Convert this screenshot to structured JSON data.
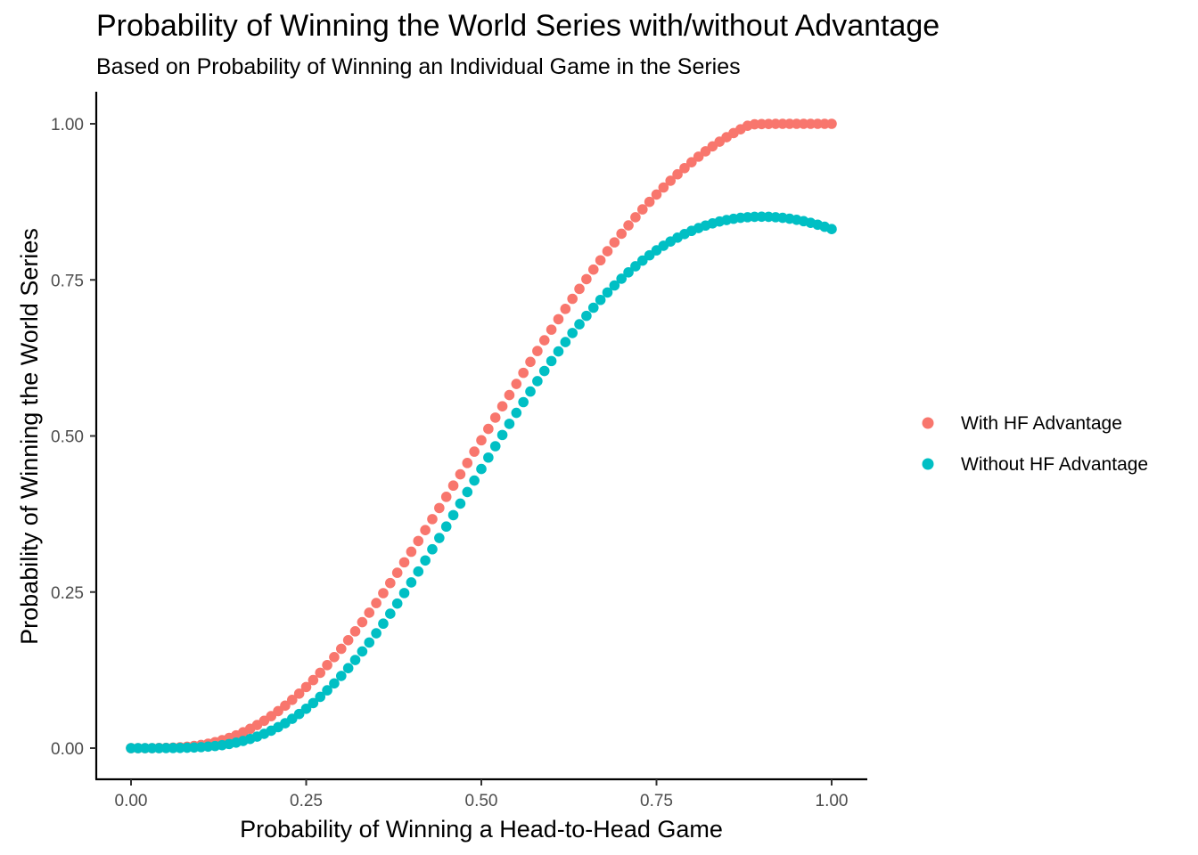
{
  "chart_data": {
    "type": "scatter",
    "title": "Probability of Winning the World Series with/without Advantage",
    "subtitle": "Based on Probability of Winning an Individual Game in the Series",
    "xlabel": "Probability of Winning a Head-to-Head Game",
    "ylabel": "Probability of Winning the World Series",
    "xlim": [
      0,
      1
    ],
    "ylim": [
      0,
      1
    ],
    "x_ticks": [
      "0.00",
      "0.25",
      "0.50",
      "0.75",
      "1.00"
    ],
    "y_ticks": [
      "0.00",
      "0.25",
      "0.50",
      "0.75",
      "1.00"
    ],
    "grid": false,
    "legend_position": "right",
    "x": [
      0.0,
      0.01,
      0.02,
      0.03,
      0.04,
      0.05,
      0.06,
      0.07,
      0.08,
      0.09,
      0.1,
      0.11,
      0.12,
      0.13,
      0.14,
      0.15,
      0.16,
      0.17,
      0.18,
      0.19,
      0.2,
      0.21,
      0.22,
      0.23,
      0.24,
      0.25,
      0.26,
      0.27,
      0.28,
      0.29,
      0.3,
      0.31,
      0.32,
      0.33,
      0.34,
      0.35,
      0.36,
      0.37,
      0.38,
      0.39,
      0.4,
      0.41,
      0.42,
      0.43,
      0.44,
      0.45,
      0.46,
      0.47,
      0.48,
      0.49,
      0.5,
      0.51,
      0.52,
      0.53,
      0.54,
      0.55,
      0.56,
      0.57,
      0.58,
      0.59,
      0.6,
      0.61,
      0.62,
      0.63,
      0.64,
      0.65,
      0.66,
      0.67,
      0.68,
      0.69,
      0.7,
      0.71,
      0.72,
      0.73,
      0.74,
      0.75,
      0.76,
      0.77,
      0.78,
      0.79,
      0.8,
      0.81,
      0.82,
      0.83,
      0.84,
      0.85,
      0.86,
      0.87,
      0.88,
      0.89,
      0.9,
      0.91,
      0.92,
      0.93,
      0.94,
      0.95,
      0.96,
      0.97,
      0.98,
      0.99,
      1.0
    ],
    "series": [
      {
        "name": "With HF Advantage",
        "color": "#F8766D",
        "values": [
          0.0,
          0.0,
          0.0,
          0.0,
          0.0002,
          0.0004,
          0.0008,
          0.0014,
          0.0023,
          0.0035,
          0.0051,
          0.0071,
          0.0096,
          0.0127,
          0.0163,
          0.0205,
          0.0254,
          0.0309,
          0.037,
          0.0438,
          0.0512,
          0.0593,
          0.068,
          0.0773,
          0.0873,
          0.0979,
          0.109,
          0.1207,
          0.133,
          0.1458,
          0.1591,
          0.1729,
          0.1871,
          0.2018,
          0.2169,
          0.2324,
          0.2482,
          0.2644,
          0.2809,
          0.2976,
          0.3146,
          0.3318,
          0.3492,
          0.3668,
          0.3846,
          0.4025,
          0.4205,
          0.4386,
          0.4567,
          0.4749,
          0.4931,
          0.5113,
          0.5294,
          0.5475,
          0.5655,
          0.5834,
          0.6011,
          0.6187,
          0.6361,
          0.6533,
          0.6703,
          0.687,
          0.7035,
          0.7197,
          0.7356,
          0.7512,
          0.7665,
          0.7814,
          0.7959,
          0.8101,
          0.8239,
          0.8373,
          0.8503,
          0.8629,
          0.875,
          0.8867,
          0.898,
          0.9088,
          0.9191,
          0.929,
          0.9384,
          0.9474,
          0.9559,
          0.9639,
          0.9714,
          0.9785,
          0.9851,
          0.9912,
          0.9969,
          0.9992,
          0.9996,
          0.9998,
          0.9999,
          1.0,
          1.0,
          1.0,
          1.0,
          1.0,
          1.0,
          1.0,
          1.0
        ]
      },
      {
        "name": "Without HF Advantage",
        "color": "#00BFC4",
        "values": [
          0.0,
          0.0,
          0.0,
          0.0,
          0.0,
          0.0001,
          0.0002,
          0.0003,
          0.0006,
          0.001,
          0.0016,
          0.0024,
          0.0034,
          0.0048,
          0.0066,
          0.0088,
          0.0115,
          0.0147,
          0.0185,
          0.0229,
          0.0279,
          0.0336,
          0.0399,
          0.047,
          0.0547,
          0.0631,
          0.0722,
          0.0821,
          0.0926,
          0.1037,
          0.1156,
          0.1281,
          0.1412,
          0.1549,
          0.1692,
          0.184,
          0.1994,
          0.2153,
          0.2316,
          0.2484,
          0.2654,
          0.2829,
          0.3006,
          0.3185,
          0.3366,
          0.3549,
          0.3732,
          0.3917,
          0.4102,
          0.4286,
          0.4471,
          0.4654,
          0.4836,
          0.5016,
          0.5194,
          0.537,
          0.5542,
          0.5712,
          0.5878,
          0.6041,
          0.62,
          0.6354,
          0.6504,
          0.6649,
          0.6789,
          0.6924,
          0.7054,
          0.7179,
          0.7298,
          0.7411,
          0.7519,
          0.7621,
          0.7718,
          0.7809,
          0.7894,
          0.7973,
          0.8047,
          0.8115,
          0.8177,
          0.8234,
          0.8285,
          0.833,
          0.837,
          0.8405,
          0.8435,
          0.8459,
          0.8479,
          0.8494,
          0.8504,
          0.851,
          0.8512,
          0.851,
          0.8504,
          0.8494,
          0.848,
          0.8462,
          0.844,
          0.8414,
          0.8384,
          0.8351,
          0.8314
        ]
      }
    ]
  }
}
